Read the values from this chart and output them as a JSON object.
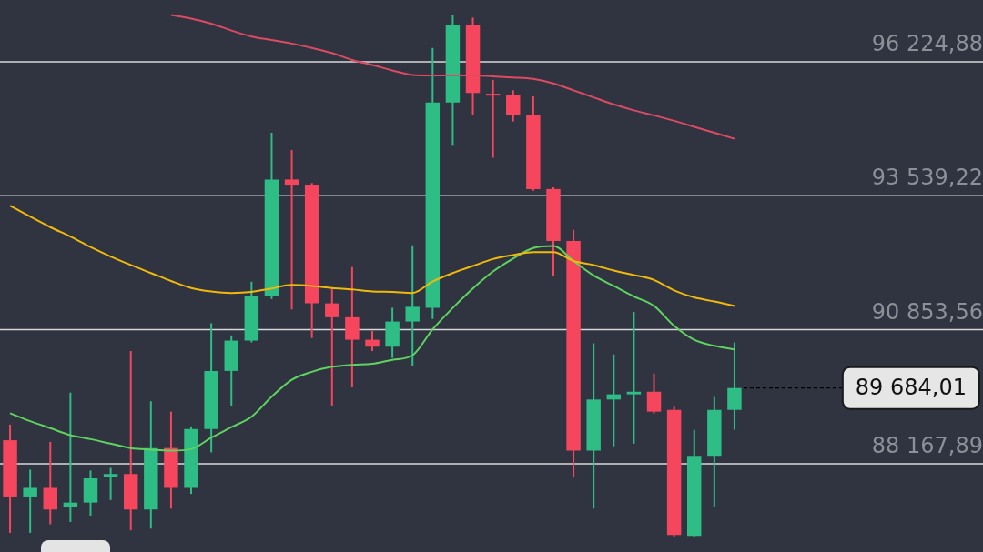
{
  "chart_data": {
    "type": "candlestick",
    "categories": [
      null,
      null,
      null,
      null,
      null,
      null,
      null,
      null,
      null,
      null,
      null,
      null,
      null,
      null,
      null,
      null,
      null,
      null,
      null,
      null,
      null,
      null,
      null,
      null,
      null,
      null,
      null,
      null,
      null,
      null,
      null,
      null,
      null,
      null,
      null,
      null,
      null
    ],
    "ohlc": [
      [
        88638,
        88951,
        86781,
        87510
      ],
      [
        87510,
        88048,
        86781,
        87683
      ],
      [
        87683,
        88603,
        86954,
        87249
      ],
      [
        87301,
        89593,
        87000,
        87388
      ],
      [
        87388,
        88031,
        87128,
        87874
      ],
      [
        87909,
        88083,
        87440,
        87961
      ],
      [
        87961,
        90426,
        86833,
        87249
      ],
      [
        87249,
        89419,
        86867,
        88482
      ],
      [
        88482,
        89211,
        87267,
        87683
      ],
      [
        87683,
        88916,
        87562,
        88864
      ],
      [
        88864,
        90982,
        88395,
        90027
      ],
      [
        90027,
        90739,
        89333,
        90635
      ],
      [
        90635,
        91815,
        90600,
        91520
      ],
      [
        91520,
        94801,
        91468,
        93864
      ],
      [
        93864,
        94454,
        91260,
        93760
      ],
      [
        93760,
        93794,
        90687,
        91381
      ],
      [
        91381,
        91676,
        89333,
        91103
      ],
      [
        91103,
        92110,
        89697,
        90652
      ],
      [
        90652,
        90826,
        90426,
        90513
      ],
      [
        90513,
        91294,
        90287,
        91017
      ],
      [
        91017,
        92544,
        90131,
        91312
      ],
      [
        91294,
        96503,
        91069,
        95409
      ],
      [
        95409,
        97160,
        94558,
        96954
      ],
      [
        96954,
        97110,
        95149,
        95600
      ],
      [
        95583,
        95860,
        94298,
        95548
      ],
      [
        95548,
        95652,
        95027,
        95149
      ],
      [
        95149,
        95530,
        93638,
        93673
      ],
      [
        93673,
        93708,
        91937,
        92631
      ],
      [
        92631,
        92857,
        87909,
        88430
      ],
      [
        88430,
        90583,
        87267,
        89454
      ],
      [
        89454,
        90357,
        88517,
        89558
      ],
      [
        89558,
        91208,
        88569,
        89610
      ],
      [
        89610,
        89975,
        89176,
        89211
      ],
      [
        89246,
        89315,
        86700,
        86740
      ],
      [
        86720,
        88847,
        86690,
        88326
      ],
      [
        88326,
        89506,
        87301,
        89246
      ],
      [
        89246,
        90600,
        88847,
        89684.01
      ]
    ],
    "colors": [
      "#f6465d",
      "#2ebd85",
      "#f6465d",
      "#2ebd85",
      "#2ebd85",
      "#2ebd85",
      "#f6465d",
      "#2ebd85",
      "#f6465d",
      "#2ebd85",
      "#2ebd85",
      "#2ebd85",
      "#2ebd85",
      "#2ebd85",
      "#f6465d",
      "#f6465d",
      "#f6465d",
      "#f6465d",
      "#f6465d",
      "#2ebd85",
      "#2ebd85",
      "#2ebd85",
      "#2ebd85",
      "#f6465d",
      "#f6465d",
      "#f6465d",
      "#f6465d",
      "#f6465d",
      "#f6465d",
      "#2ebd85",
      "#2ebd85",
      "#2ebd85",
      "#f6465d",
      "#f6465d",
      "#2ebd85",
      "#2ebd85",
      "#2ebd85"
    ],
    "series": [
      {
        "type": "line",
        "color": "#dc4a63",
        "values": [
          null,
          null,
          null,
          null,
          null,
          null,
          null,
          null,
          97160,
          97090,
          96990,
          96850,
          96730,
          96660,
          96590,
          96500,
          96400,
          96260,
          96160,
          96050,
          95960,
          95950,
          95950,
          95950,
          95930,
          95910,
          95880,
          95790,
          95650,
          95510,
          95370,
          95250,
          95150,
          95040,
          94920,
          94800,
          94680
        ]
      },
      {
        "type": "line",
        "color": "#f0b90b",
        "values": [
          93340,
          93120,
          92910,
          92720,
          92510,
          92320,
          92150,
          91990,
          91830,
          91690,
          91620,
          91590,
          91610,
          91680,
          91750,
          91730,
          91690,
          91660,
          91620,
          91610,
          91590,
          91820,
          91990,
          92130,
          92270,
          92350,
          92410,
          92410,
          92230,
          92150,
          92040,
          91950,
          91850,
          91640,
          91500,
          91420,
          91330
        ]
      },
      {
        "type": "line",
        "color": "#5fd35f",
        "values": [
          89180,
          89020,
          88880,
          88740,
          88660,
          88570,
          88480,
          88450,
          88430,
          88460,
          88690,
          88900,
          89110,
          89510,
          89850,
          90010,
          90110,
          90150,
          90170,
          90250,
          90340,
          90860,
          91290,
          91680,
          92020,
          92280,
          92490,
          92530,
          92230,
          91940,
          91730,
          91520,
          91330,
          90930,
          90650,
          90530,
          90460
        ]
      }
    ],
    "ylim": [
      86660,
      97200
    ],
    "yticks": [
      {
        "value": 96224.88,
        "label": "96 224,88"
      },
      {
        "value": 93539.22,
        "label": "93 539,22"
      },
      {
        "value": 90853.56,
        "label": "90 853,56"
      },
      {
        "value": 88167.89,
        "label": "88 167,89"
      }
    ],
    "ref_lines": [
      {
        "axis": "y",
        "value": 89684.01,
        "label": "89 684,01",
        "line_style": "dashed",
        "color": "#000000"
      }
    ],
    "grid": "y",
    "tick_labels": "y",
    "marker": "none"
  }
}
